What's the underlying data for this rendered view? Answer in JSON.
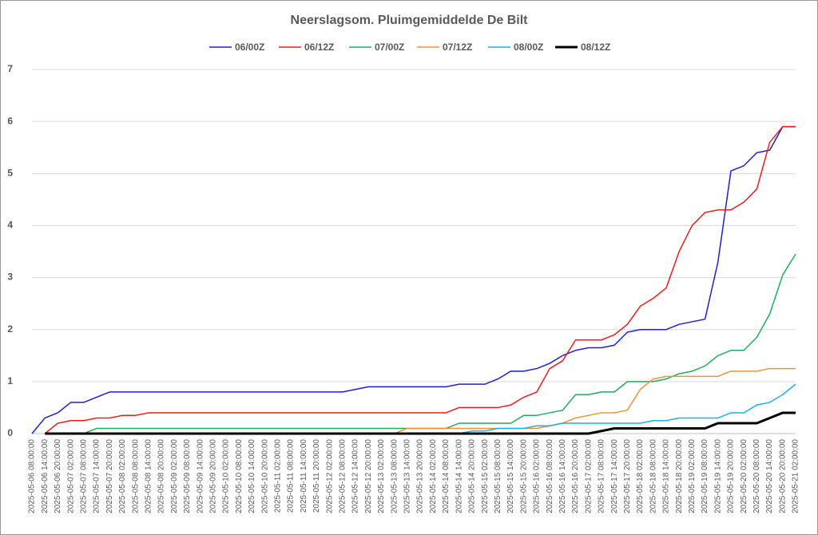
{
  "chart_data": {
    "type": "line",
    "title": "Neerslagsom. Pluimgemiddelde De Bilt",
    "categories": [
      "2025-05-06 08:00:00",
      "2025-05-06 14:00:00",
      "2025-05-06 20:00:00",
      "2025-05-07 02:00:00",
      "2025-05-07 08:00:00",
      "2025-05-07 14:00:00",
      "2025-05-07 20:00:00",
      "2025-05-08 02:00:00",
      "2025-05-08 08:00:00",
      "2025-05-08 14:00:00",
      "2025-05-08 20:00:00",
      "2025-05-09 02:00:00",
      "2025-05-09 08:00:00",
      "2025-05-09 14:00:00",
      "2025-05-09 20:00:00",
      "2025-05-10 02:00:00",
      "2025-05-10 08:00:00",
      "2025-05-10 14:00:00",
      "2025-05-10 20:00:00",
      "2025-05-11 02:00:00",
      "2025-05-11 08:00:00",
      "2025-05-11 14:00:00",
      "2025-05-11 20:00:00",
      "2025-05-12 02:00:00",
      "2025-05-12 08:00:00",
      "2025-05-12 14:00:00",
      "2025-05-12 20:00:00",
      "2025-05-13 02:00:00",
      "2025-05-13 08:00:00",
      "2025-05-13 14:00:00",
      "2025-05-13 20:00:00",
      "2025-05-14 02:00:00",
      "2025-05-14 08:00:00",
      "2025-05-14 14:00:00",
      "2025-05-14 20:00:00",
      "2025-05-15 02:00:00",
      "2025-05-15 08:00:00",
      "2025-05-15 14:00:00",
      "2025-05-15 20:00:00",
      "2025-05-16 02:00:00",
      "2025-05-16 08:00:00",
      "2025-05-16 14:00:00",
      "2025-05-16 20:00:00",
      "2025-05-17 02:00:00",
      "2025-05-17 08:00:00",
      "2025-05-17 14:00:00",
      "2025-05-17 20:00:00",
      "2025-05-18 02:00:00",
      "2025-05-18 08:00:00",
      "2025-05-18 14:00:00",
      "2025-05-18 20:00:00",
      "2025-05-19 02:00:00",
      "2025-05-19 08:00:00",
      "2025-05-19 14:00:00",
      "2025-05-19 20:00:00",
      "2025-05-20 02:00:00",
      "2025-05-20 08:00:00",
      "2025-05-20 14:00:00",
      "2025-05-20 20:00:00",
      "2025-05-21 02:00:00"
    ],
    "series": [
      {
        "name": "06/00Z",
        "color": "#1f1fd6",
        "width": 1.5,
        "values": [
          0,
          0.3,
          0.4,
          0.6,
          0.6,
          0.7,
          0.8,
          0.8,
          0.8,
          0.8,
          0.8,
          0.8,
          0.8,
          0.8,
          0.8,
          0.8,
          0.8,
          0.8,
          0.8,
          0.8,
          0.8,
          0.8,
          0.8,
          0.8,
          0.8,
          0.85,
          0.9,
          0.9,
          0.9,
          0.9,
          0.9,
          0.9,
          0.9,
          0.95,
          0.95,
          0.95,
          1.05,
          1.2,
          1.2,
          1.25,
          1.35,
          1.5,
          1.6,
          1.65,
          1.65,
          1.7,
          1.95,
          2.0,
          2.0,
          2.0,
          2.1,
          2.15,
          2.2,
          3.3,
          5.05,
          5.15,
          5.4,
          5.45,
          5.9,
          5.9
        ]
      },
      {
        "name": "06/12Z",
        "color": "#ee1c1c",
        "width": 1.5,
        "values": [
          null,
          0,
          0.2,
          0.25,
          0.25,
          0.3,
          0.3,
          0.35,
          0.35,
          0.4,
          0.4,
          0.4,
          0.4,
          0.4,
          0.4,
          0.4,
          0.4,
          0.4,
          0.4,
          0.4,
          0.4,
          0.4,
          0.4,
          0.4,
          0.4,
          0.4,
          0.4,
          0.4,
          0.4,
          0.4,
          0.4,
          0.4,
          0.4,
          0.5,
          0.5,
          0.5,
          0.5,
          0.55,
          0.7,
          0.8,
          1.25,
          1.4,
          1.8,
          1.8,
          1.8,
          1.9,
          2.1,
          2.45,
          2.6,
          2.8,
          3.5,
          4.0,
          4.25,
          4.3,
          4.3,
          4.45,
          4.7,
          5.6,
          5.9,
          5.9
        ]
      },
      {
        "name": "07/00Z",
        "color": "#1fae5a",
        "width": 1.5,
        "values": [
          null,
          null,
          null,
          null,
          0,
          0.1,
          0.1,
          0.1,
          0.1,
          0.1,
          0.1,
          0.1,
          0.1,
          0.1,
          0.1,
          0.1,
          0.1,
          0.1,
          0.1,
          0.1,
          0.1,
          0.1,
          0.1,
          0.1,
          0.1,
          0.1,
          0.1,
          0.1,
          0.1,
          0.1,
          0.1,
          0.1,
          0.1,
          0.2,
          0.2,
          0.2,
          0.2,
          0.2,
          0.35,
          0.35,
          0.4,
          0.45,
          0.75,
          0.75,
          0.8,
          0.8,
          1.0,
          1.0,
          1.0,
          1.05,
          1.15,
          1.2,
          1.3,
          1.5,
          1.6,
          1.6,
          1.85,
          2.3,
          3.05,
          3.45
        ]
      },
      {
        "name": "07/12Z",
        "color": "#f0923a",
        "width": 1.5,
        "values": [
          null,
          null,
          null,
          null,
          null,
          null,
          null,
          null,
          null,
          null,
          null,
          null,
          null,
          null,
          null,
          null,
          null,
          null,
          null,
          null,
          null,
          null,
          null,
          null,
          null,
          null,
          null,
          null,
          0,
          0.1,
          0.1,
          0.1,
          0.1,
          0.1,
          0.1,
          0.1,
          0.1,
          0.1,
          0.1,
          0.1,
          0.15,
          0.2,
          0.3,
          0.35,
          0.4,
          0.4,
          0.45,
          0.85,
          1.05,
          1.1,
          1.1,
          1.1,
          1.1,
          1.1,
          1.2,
          1.2,
          1.2,
          1.25,
          1.25,
          1.25
        ]
      },
      {
        "name": "08/00Z",
        "color": "#1eb1e6",
        "width": 1.5,
        "values": [
          null,
          null,
          null,
          null,
          null,
          null,
          null,
          null,
          null,
          null,
          null,
          null,
          null,
          null,
          null,
          null,
          null,
          null,
          null,
          null,
          null,
          null,
          null,
          null,
          null,
          null,
          null,
          null,
          null,
          null,
          null,
          null,
          null,
          0,
          0.05,
          0.05,
          0.1,
          0.1,
          0.1,
          0.15,
          0.15,
          0.2,
          0.2,
          0.2,
          0.2,
          0.2,
          0.2,
          0.2,
          0.25,
          0.25,
          0.3,
          0.3,
          0.3,
          0.3,
          0.4,
          0.4,
          0.55,
          0.6,
          0.75,
          0.95
        ]
      },
      {
        "name": "08/12Z",
        "color": "#000000",
        "width": 3,
        "values": [
          null,
          0,
          0,
          0,
          0,
          0,
          0,
          0,
          0,
          0,
          0,
          0,
          0,
          0,
          0,
          0,
          0,
          0,
          0,
          0,
          0,
          0,
          0,
          0,
          0,
          0,
          0,
          0,
          0,
          0,
          0,
          0,
          0,
          0,
          0,
          0,
          0,
          0,
          0,
          0,
          0,
          0,
          0,
          0,
          0.05,
          0.1,
          0.1,
          0.1,
          0.1,
          0.1,
          0.1,
          0.1,
          0.1,
          0.2,
          0.2,
          0.2,
          0.2,
          0.3,
          0.4,
          0.4
        ]
      }
    ],
    "ylim": [
      0,
      7
    ],
    "yticks": [
      0,
      1,
      2,
      3,
      4,
      5,
      6,
      7
    ],
    "grid": true,
    "legend": "top"
  }
}
